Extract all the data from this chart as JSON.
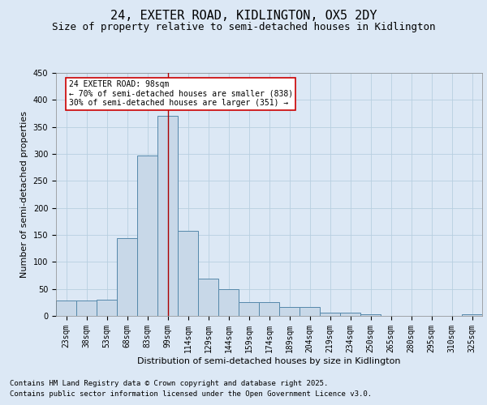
{
  "title": "24, EXETER ROAD, KIDLINGTON, OX5 2DY",
  "subtitle": "Size of property relative to semi-detached houses in Kidlington",
  "xlabel": "Distribution of semi-detached houses by size in Kidlington",
  "ylabel": "Number of semi-detached properties",
  "bin_labels": [
    "23sqm",
    "38sqm",
    "53sqm",
    "68sqm",
    "83sqm",
    "99sqm",
    "114sqm",
    "129sqm",
    "144sqm",
    "159sqm",
    "174sqm",
    "189sqm",
    "204sqm",
    "219sqm",
    "234sqm",
    "250sqm",
    "265sqm",
    "280sqm",
    "295sqm",
    "310sqm",
    "325sqm"
  ],
  "bar_values": [
    28,
    29,
    30,
    144,
    297,
    370,
    157,
    69,
    50,
    25,
    25,
    17,
    17,
    6,
    6,
    3,
    0,
    0,
    0,
    0,
    3
  ],
  "bar_color": "#c8d8e8",
  "bar_edge_color": "#5588aa",
  "ylim": [
    0,
    450
  ],
  "yticks": [
    0,
    50,
    100,
    150,
    200,
    250,
    300,
    350,
    400,
    450
  ],
  "vline_x": 5.0,
  "vline_color": "#aa0000",
  "annotation_title": "24 EXETER ROAD: 98sqm",
  "annotation_line1": "← 70% of semi-detached houses are smaller (838)",
  "annotation_line2": "30% of semi-detached houses are larger (351) →",
  "annotation_box_color": "#ffffff",
  "annotation_box_edge": "#cc0000",
  "footer1": "Contains HM Land Registry data © Crown copyright and database right 2025.",
  "footer2": "Contains public sector information licensed under the Open Government Licence v3.0.",
  "bg_color": "#dce8f5",
  "grid_color": "#b8cfe0",
  "title_fontsize": 11,
  "subtitle_fontsize": 9,
  "axis_label_fontsize": 8,
  "tick_fontsize": 7,
  "footer_fontsize": 6.5
}
